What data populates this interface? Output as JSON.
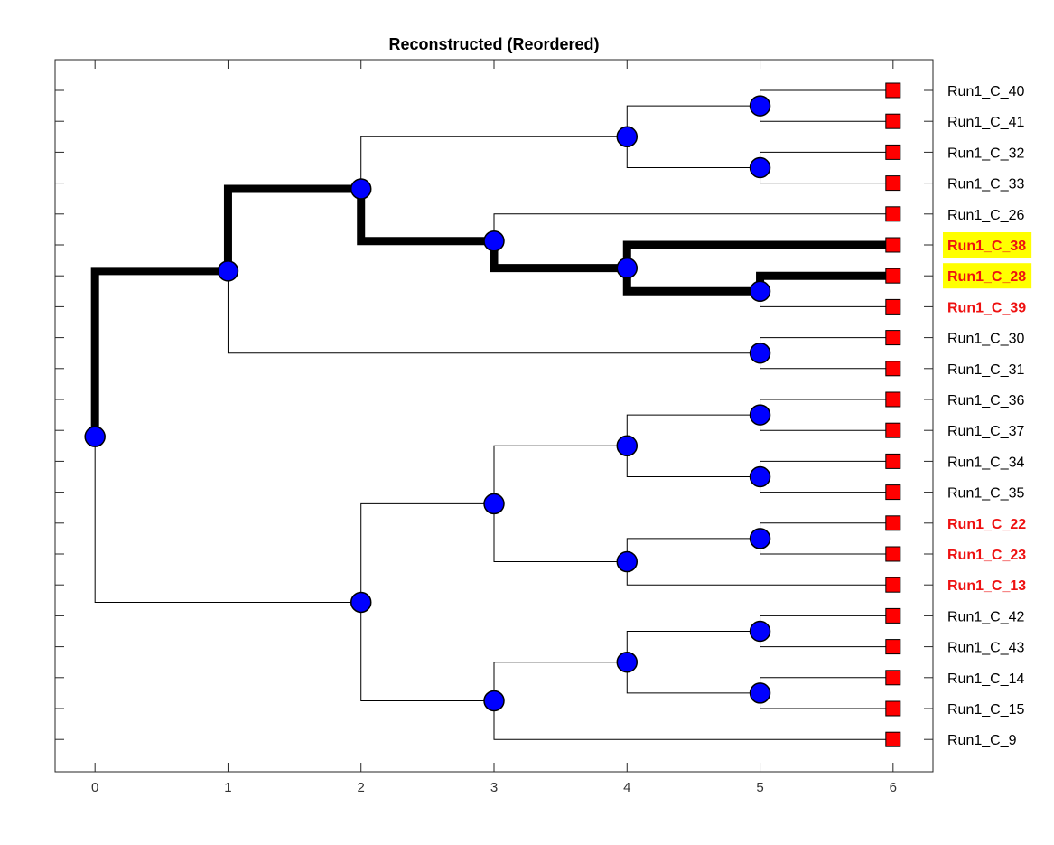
{
  "title": "Reconstructed (Reordered)",
  "colors": {
    "node": "#0000ff",
    "leaf": "#ff0000",
    "highlight_path": "#000000",
    "red_label": "#ee1111",
    "label_highlight": "#ffff00"
  },
  "chart_data": {
    "type": "dendrogram",
    "xlim": [
      -0.3,
      6.3
    ],
    "x_ticks": [
      "0",
      "1",
      "2",
      "3",
      "4",
      "5",
      "6"
    ],
    "leaves": [
      {
        "label": "Run1_C_40",
        "style": "normal"
      },
      {
        "label": "Run1_C_41",
        "style": "normal"
      },
      {
        "label": "Run1_C_32",
        "style": "normal"
      },
      {
        "label": "Run1_C_33",
        "style": "normal"
      },
      {
        "label": "Run1_C_26",
        "style": "normal"
      },
      {
        "label": "Run1_C_38",
        "style": "highlight"
      },
      {
        "label": "Run1_C_28",
        "style": "highlight"
      },
      {
        "label": "Run1_C_39",
        "style": "red"
      },
      {
        "label": "Run1_C_30",
        "style": "normal"
      },
      {
        "label": "Run1_C_31",
        "style": "normal"
      },
      {
        "label": "Run1_C_36",
        "style": "normal"
      },
      {
        "label": "Run1_C_37",
        "style": "normal"
      },
      {
        "label": "Run1_C_34",
        "style": "normal"
      },
      {
        "label": "Run1_C_35",
        "style": "normal"
      },
      {
        "label": "Run1_C_22",
        "style": "red"
      },
      {
        "label": "Run1_C_23",
        "style": "red"
      },
      {
        "label": "Run1_C_13",
        "style": "red"
      },
      {
        "label": "Run1_C_42",
        "style": "normal"
      },
      {
        "label": "Run1_C_43",
        "style": "normal"
      },
      {
        "label": "Run1_C_14",
        "style": "normal"
      },
      {
        "label": "Run1_C_15",
        "style": "normal"
      },
      {
        "label": "Run1_C_9",
        "style": "normal"
      }
    ],
    "nodes": [
      {
        "id": "n0",
        "depth": 0,
        "children": [
          "n1a",
          "n1b"
        ]
      },
      {
        "id": "n1a",
        "depth": 1,
        "children": [
          "n2a",
          "n5e"
        ]
      },
      {
        "id": "n2a",
        "depth": 2,
        "children": [
          "n4a",
          "n3a"
        ]
      },
      {
        "id": "n4a",
        "depth": 4,
        "children": [
          "n5a",
          "n5b"
        ]
      },
      {
        "id": "n5a",
        "depth": 5,
        "children": [
          "L0",
          "L1"
        ]
      },
      {
        "id": "n5b",
        "depth": 5,
        "children": [
          "L2",
          "L3"
        ]
      },
      {
        "id": "n3a",
        "depth": 3,
        "children": [
          "L4",
          "n4b"
        ]
      },
      {
        "id": "n4b",
        "depth": 4,
        "children": [
          "L5",
          "n5c"
        ]
      },
      {
        "id": "n5c",
        "depth": 5,
        "children": [
          "L6",
          "L7"
        ]
      },
      {
        "id": "n5e",
        "depth": 5,
        "children": [
          "L8",
          "L9"
        ]
      },
      {
        "id": "n1b",
        "depth": 2,
        "children": [
          "n3b",
          "n3c"
        ]
      },
      {
        "id": "n3b",
        "depth": 3,
        "children": [
          "n4c",
          "n4d"
        ]
      },
      {
        "id": "n4c",
        "depth": 4,
        "children": [
          "n5f",
          "n5g"
        ]
      },
      {
        "id": "n5f",
        "depth": 5,
        "children": [
          "L10",
          "L11"
        ]
      },
      {
        "id": "n5g",
        "depth": 5,
        "children": [
          "L12",
          "L13"
        ]
      },
      {
        "id": "n4d",
        "depth": 4,
        "children": [
          "n5h",
          "L16"
        ]
      },
      {
        "id": "n5h",
        "depth": 5,
        "children": [
          "L14",
          "L15"
        ]
      },
      {
        "id": "n3c",
        "depth": 3,
        "children": [
          "n4e",
          "L21"
        ]
      },
      {
        "id": "n4e",
        "depth": 4,
        "children": [
          "n5i",
          "n5j"
        ]
      },
      {
        "id": "n5i",
        "depth": 5,
        "children": [
          "L17",
          "L18"
        ]
      },
      {
        "id": "n5j",
        "depth": 5,
        "children": [
          "L19",
          "L20"
        ]
      }
    ],
    "highlighted_path_edges": [
      [
        "n0",
        "n1a"
      ],
      [
        "n1a",
        "n2a"
      ],
      [
        "n2a",
        "n3a"
      ],
      [
        "n3a",
        "n4b"
      ],
      [
        "n4b",
        "L5"
      ],
      [
        "n4b",
        "n5c"
      ],
      [
        "n5c",
        "L6"
      ]
    ]
  }
}
